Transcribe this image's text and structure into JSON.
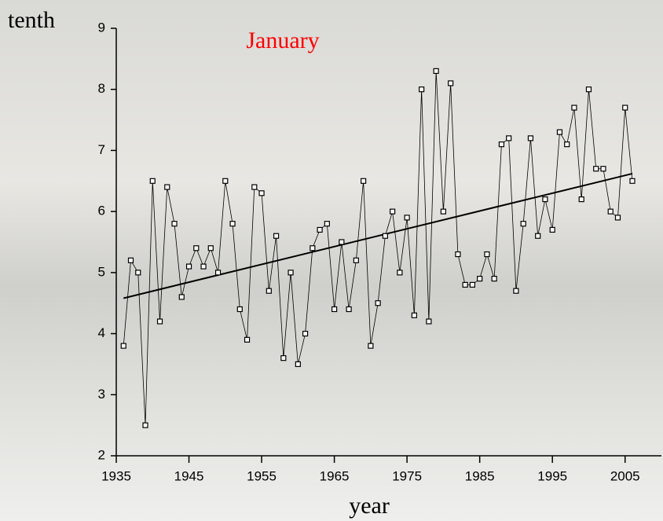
{
  "chart_data": {
    "type": "line",
    "title": "January",
    "ylabel": "tenth",
    "xlabel": "year",
    "x": [
      1936,
      1937,
      1938,
      1939,
      1940,
      1941,
      1942,
      1943,
      1944,
      1945,
      1946,
      1947,
      1948,
      1949,
      1950,
      1951,
      1952,
      1953,
      1954,
      1955,
      1956,
      1957,
      1958,
      1959,
      1960,
      1961,
      1962,
      1963,
      1964,
      1965,
      1966,
      1967,
      1968,
      1969,
      1970,
      1971,
      1972,
      1973,
      1974,
      1975,
      1976,
      1977,
      1978,
      1979,
      1980,
      1981,
      1982,
      1983,
      1984,
      1985,
      1986,
      1987,
      1988,
      1989,
      1990,
      1991,
      1992,
      1993,
      1994,
      1995,
      1996,
      1997,
      1998,
      1999,
      2000,
      2001,
      2002,
      2003,
      2004,
      2005,
      2006
    ],
    "values": [
      3.8,
      5.2,
      5.0,
      2.5,
      6.5,
      4.2,
      6.4,
      5.8,
      4.6,
      5.1,
      5.4,
      5.1,
      5.4,
      5.0,
      6.5,
      5.8,
      4.4,
      3.9,
      6.4,
      6.3,
      4.7,
      5.6,
      3.6,
      5.0,
      3.5,
      4.0,
      5.4,
      5.7,
      5.8,
      4.4,
      5.5,
      4.4,
      5.2,
      6.5,
      3.8,
      4.5,
      5.6,
      6.0,
      5.0,
      5.9,
      4.3,
      8.0,
      4.2,
      8.3,
      6.0,
      8.1,
      5.3,
      4.8,
      4.8,
      4.9,
      5.3,
      4.9,
      7.1,
      7.2,
      4.7,
      5.8,
      7.2,
      5.6,
      6.2,
      5.7,
      7.3,
      7.1,
      7.7,
      6.2,
      8.0,
      6.7,
      6.7,
      6.0,
      5.9,
      7.7,
      6.5
    ],
    "color": "#000000",
    "trend": {
      "x": [
        1936,
        2006
      ],
      "values": [
        4.58,
        6.62
      ]
    },
    "xlim": [
      1935,
      2010
    ],
    "ylim": [
      2,
      9
    ],
    "xticks": [
      1935,
      1945,
      1955,
      1965,
      1975,
      1985,
      1995,
      2005
    ],
    "yticks": [
      2,
      3,
      4,
      5,
      6,
      7,
      8,
      9
    ],
    "title_color": "#ff0000"
  }
}
